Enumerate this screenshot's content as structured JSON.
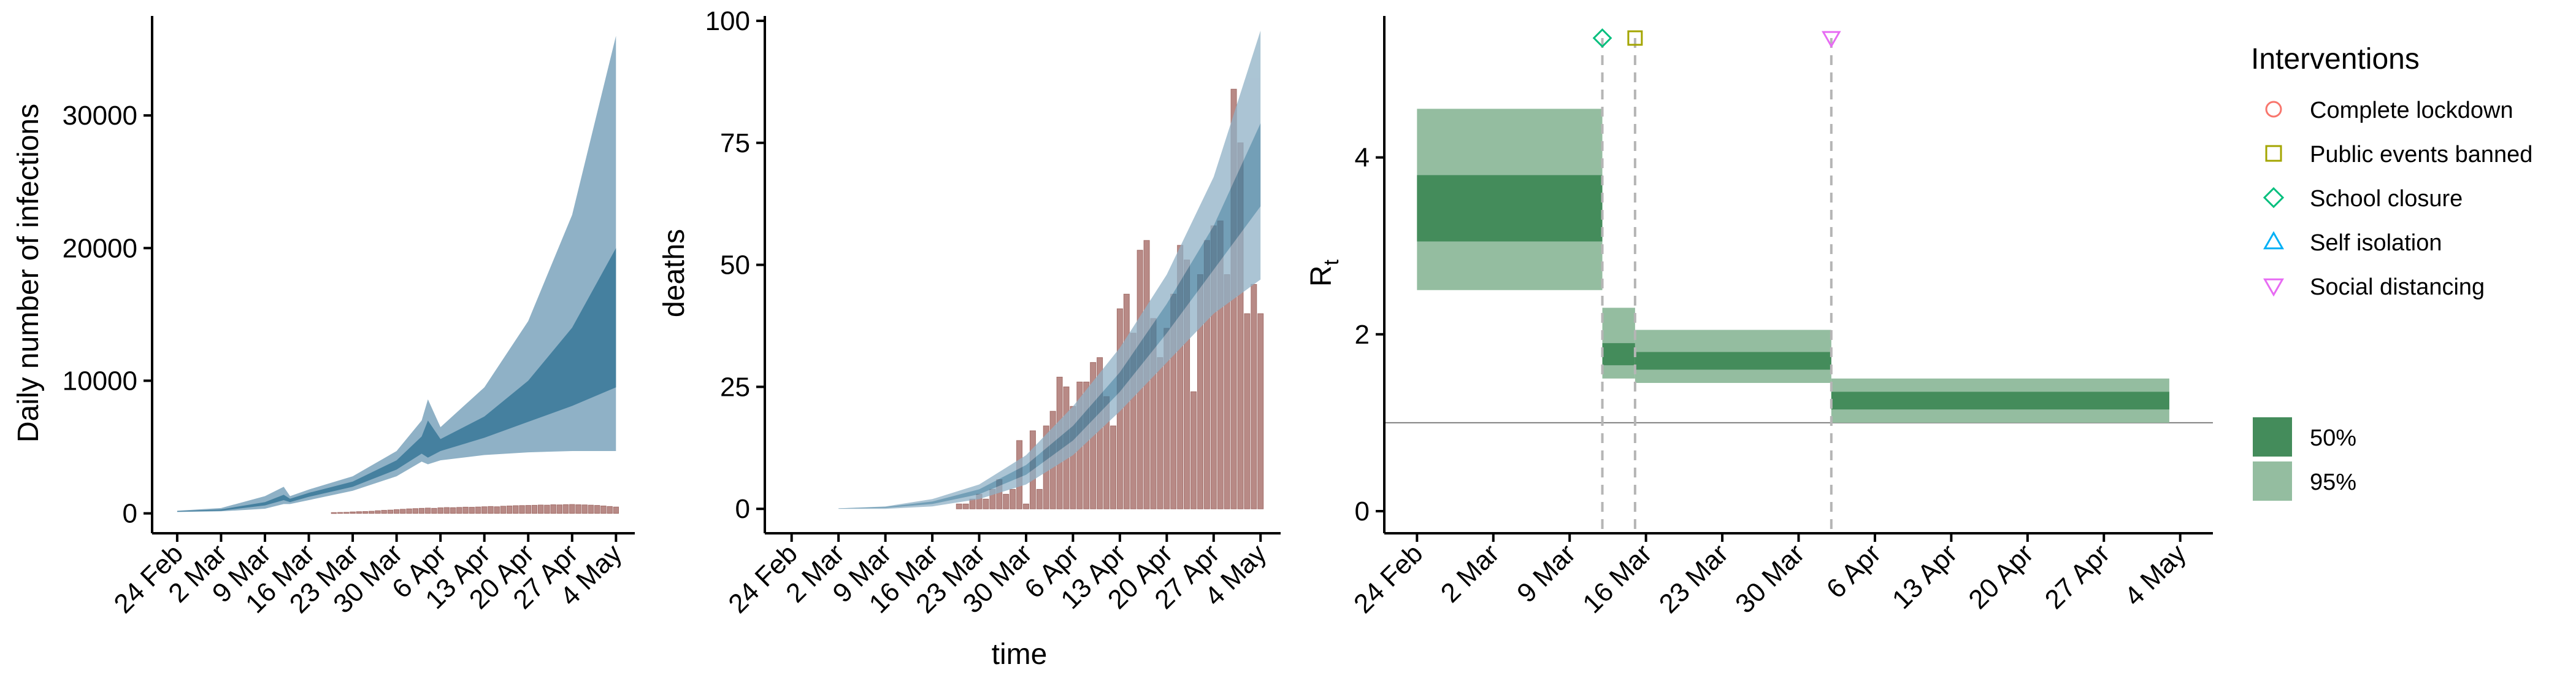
{
  "colors": {
    "bar": "#b88a86",
    "bar_stroke": "#a36f6a",
    "band_95": "#8fb1c6",
    "band_50": "#45809f",
    "rt_95": "#94bda0",
    "rt_50": "#448c5b",
    "threshold": "#808080",
    "intervention_line": "#b5b5b5",
    "complete_lockdown": "#f8766d",
    "public_events_banned": "#a3a500",
    "school_closure": "#00bf7d",
    "self_isolation": "#00b0f6",
    "social_distancing": "#e76bf3"
  },
  "chart_data": [
    {
      "type": "area",
      "title": "",
      "xlabel": "",
      "ylabel": "Daily number of infections",
      "xlim": [
        "2020-02-20",
        "2020-05-07"
      ],
      "ylim": [
        -1500,
        37500
      ],
      "x_ticks": [
        "2020-02-24",
        "2020-03-02",
        "2020-03-09",
        "2020-03-16",
        "2020-03-23",
        "2020-03-30",
        "2020-04-06",
        "2020-04-13",
        "2020-04-20",
        "2020-04-27",
        "2020-05-04"
      ],
      "x_tick_labels": [
        "24 Feb",
        "2 Mar",
        "9 Mar",
        "16 Mar",
        "23 Mar",
        "30 Mar",
        "6 Apr",
        "13 Apr",
        "20 Apr",
        "27 Apr",
        "4 May"
      ],
      "y_ticks": [
        0,
        10000,
        20000,
        30000
      ],
      "y_tick_labels": [
        "0",
        "10000",
        "20000",
        "30000"
      ],
      "bands": {
        "x": [
          "2020-02-24",
          "2020-03-02",
          "2020-03-09",
          "2020-03-12",
          "2020-03-13",
          "2020-03-16",
          "2020-03-23",
          "2020-03-30",
          "2020-04-03",
          "2020-04-04",
          "2020-04-06",
          "2020-04-13",
          "2020-04-20",
          "2020-04-27",
          "2020-05-04"
        ],
        "lo95": [
          100,
          150,
          350,
          700,
          700,
          1000,
          1700,
          2800,
          3900,
          3700,
          4000,
          4400,
          4600,
          4700,
          4700
        ],
        "hi95": [
          200,
          400,
          1300,
          2000,
          1300,
          1800,
          2800,
          4700,
          7000,
          8600,
          6500,
          9500,
          14500,
          22500,
          36000
        ],
        "lo50": [
          130,
          200,
          600,
          1000,
          850,
          1250,
          2000,
          3300,
          4500,
          4200,
          4700,
          5700,
          6900,
          8100,
          9500
        ],
        "hi50": [
          170,
          300,
          850,
          1400,
          1100,
          1550,
          2400,
          4000,
          5800,
          7000,
          5600,
          7300,
          10000,
          14000,
          20000
        ]
      },
      "bars": {
        "x": [
          "2020-03-20",
          "2020-03-21",
          "2020-03-22",
          "2020-03-23",
          "2020-03-24",
          "2020-03-25",
          "2020-03-26",
          "2020-03-27",
          "2020-03-28",
          "2020-03-29",
          "2020-03-30",
          "2020-03-31",
          "2020-04-01",
          "2020-04-02",
          "2020-04-03",
          "2020-04-04",
          "2020-04-05",
          "2020-04-06",
          "2020-04-07",
          "2020-04-08",
          "2020-04-09",
          "2020-04-10",
          "2020-04-11",
          "2020-04-12",
          "2020-04-13",
          "2020-04-14",
          "2020-04-15",
          "2020-04-16",
          "2020-04-17",
          "2020-04-18",
          "2020-04-19",
          "2020-04-20",
          "2020-04-21",
          "2020-04-22",
          "2020-04-23",
          "2020-04-24",
          "2020-04-25",
          "2020-04-26",
          "2020-04-27",
          "2020-04-28",
          "2020-04-29",
          "2020-04-30",
          "2020-05-01",
          "2020-05-02",
          "2020-05-03",
          "2020-05-04"
        ],
        "values": [
          60,
          70,
          80,
          110,
          130,
          140,
          160,
          200,
          230,
          250,
          280,
          310,
          340,
          360,
          380,
          400,
          380,
          420,
          440,
          430,
          450,
          470,
          460,
          480,
          500,
          520,
          500,
          540,
          560,
          580,
          590,
          600,
          610,
          630,
          620,
          650,
          640,
          660,
          670,
          650,
          640,
          620,
          600,
          560,
          520,
          480
        ]
      }
    },
    {
      "type": "area",
      "title": "",
      "xlabel": "time",
      "ylabel": "deaths",
      "xlim": [
        "2020-02-20",
        "2020-05-07"
      ],
      "ylim": [
        -5,
        101
      ],
      "x_ticks": [
        "2020-02-24",
        "2020-03-02",
        "2020-03-09",
        "2020-03-16",
        "2020-03-23",
        "2020-03-30",
        "2020-04-06",
        "2020-04-13",
        "2020-04-20",
        "2020-04-27",
        "2020-05-04"
      ],
      "x_tick_labels": [
        "24 Feb",
        "2 Mar",
        "9 Mar",
        "16 Mar",
        "23 Mar",
        "30 Mar",
        "6 Apr",
        "13 Apr",
        "20 Apr",
        "27 Apr",
        "4 May"
      ],
      "y_ticks": [
        0,
        25,
        50,
        75,
        100
      ],
      "y_tick_labels": [
        "0",
        "25",
        "50",
        "75",
        "100"
      ],
      "bands": {
        "x": [
          "2020-03-02",
          "2020-03-09",
          "2020-03-16",
          "2020-03-23",
          "2020-03-30",
          "2020-04-06",
          "2020-04-13",
          "2020-04-20",
          "2020-04-27",
          "2020-05-04"
        ],
        "lo95": [
          0,
          0,
          0.5,
          2,
          5,
          11,
          20,
          30,
          40,
          47
        ],
        "hi95": [
          0.1,
          0.5,
          2,
          5,
          11,
          21,
          33,
          48,
          68,
          98
        ],
        "lo50": [
          0.05,
          0.2,
          1,
          3,
          7,
          14,
          24,
          36,
          49,
          62
        ],
        "hi50": [
          0.1,
          0.4,
          1.5,
          4,
          9,
          17,
          28,
          42,
          58,
          79
        ]
      },
      "bars": {
        "x": [
          "2020-03-20",
          "2020-03-21",
          "2020-03-22",
          "2020-03-23",
          "2020-03-24",
          "2020-03-25",
          "2020-03-26",
          "2020-03-27",
          "2020-03-28",
          "2020-03-29",
          "2020-03-30",
          "2020-03-31",
          "2020-04-01",
          "2020-04-02",
          "2020-04-03",
          "2020-04-04",
          "2020-04-05",
          "2020-04-06",
          "2020-04-07",
          "2020-04-08",
          "2020-04-09",
          "2020-04-10",
          "2020-04-11",
          "2020-04-12",
          "2020-04-13",
          "2020-04-14",
          "2020-04-15",
          "2020-04-16",
          "2020-04-17",
          "2020-04-18",
          "2020-04-19",
          "2020-04-20",
          "2020-04-21",
          "2020-04-22",
          "2020-04-23",
          "2020-04-24",
          "2020-04-25",
          "2020-04-26",
          "2020-04-27",
          "2020-04-28",
          "2020-04-29",
          "2020-04-30",
          "2020-05-01",
          "2020-05-02",
          "2020-05-03",
          "2020-05-04"
        ],
        "values": [
          1,
          1,
          2,
          3,
          2,
          4,
          6,
          3,
          4,
          14,
          1,
          16,
          4,
          17,
          20,
          27,
          25,
          21,
          26,
          26,
          30,
          31,
          23,
          17,
          41,
          44,
          36,
          53,
          55,
          39,
          31,
          37,
          44,
          54,
          51,
          24,
          48,
          55,
          58,
          59,
          48,
          86,
          75,
          40,
          46,
          40
        ]
      }
    },
    {
      "type": "area",
      "title": "",
      "xlabel": "",
      "ylabel": "R",
      "ylabel_subscript": "t",
      "xlim": [
        "2020-02-21",
        "2020-05-07"
      ],
      "ylim": [
        -0.25,
        5.6
      ],
      "x_ticks": [
        "2020-02-24",
        "2020-03-02",
        "2020-03-09",
        "2020-03-16",
        "2020-03-23",
        "2020-03-30",
        "2020-04-06",
        "2020-04-13",
        "2020-04-20",
        "2020-04-27",
        "2020-05-04"
      ],
      "x_tick_labels": [
        "24 Feb",
        "2 Mar",
        "9 Mar",
        "16 Mar",
        "23 Mar",
        "30 Mar",
        "6 Apr",
        "13 Apr",
        "20 Apr",
        "27 Apr",
        "4 May"
      ],
      "y_ticks": [
        0,
        2,
        4
      ],
      "y_tick_labels": [
        "0",
        "2",
        "4"
      ],
      "reference_line": 1,
      "segments": [
        {
          "start": "2020-02-24",
          "end": "2020-03-12",
          "lo95": 2.5,
          "hi95": 4.55,
          "lo50": 3.05,
          "hi50": 3.8
        },
        {
          "start": "2020-03-12",
          "end": "2020-03-15",
          "lo95": 1.5,
          "hi95": 2.3,
          "lo50": 1.65,
          "hi50": 1.9
        },
        {
          "start": "2020-03-15",
          "end": "2020-04-02",
          "lo95": 1.45,
          "hi95": 2.05,
          "lo50": 1.6,
          "hi50": 1.8
        },
        {
          "start": "2020-04-02",
          "end": "2020-05-03",
          "lo95": 1.0,
          "hi95": 1.5,
          "lo50": 1.15,
          "hi50": 1.35
        }
      ],
      "interventions": [
        {
          "name": "School closure",
          "date": "2020-03-12",
          "shape": "diamond"
        },
        {
          "name": "Public events banned",
          "date": "2020-03-15",
          "shape": "square"
        },
        {
          "name": "Social distancing",
          "date": "2020-04-02",
          "shape": "triangle-down"
        }
      ],
      "legend": {
        "title": "Interventions",
        "placement": "right",
        "items": [
          {
            "label": "Complete lockdown",
            "shape": "circle"
          },
          {
            "label": "Public events banned",
            "shape": "square"
          },
          {
            "label": "School closure",
            "shape": "diamond"
          },
          {
            "label": "Self isolation",
            "shape": "triangle-up"
          },
          {
            "label": "Social distancing",
            "shape": "triangle-down"
          }
        ],
        "intervals": [
          "50%",
          "95%"
        ]
      }
    }
  ]
}
